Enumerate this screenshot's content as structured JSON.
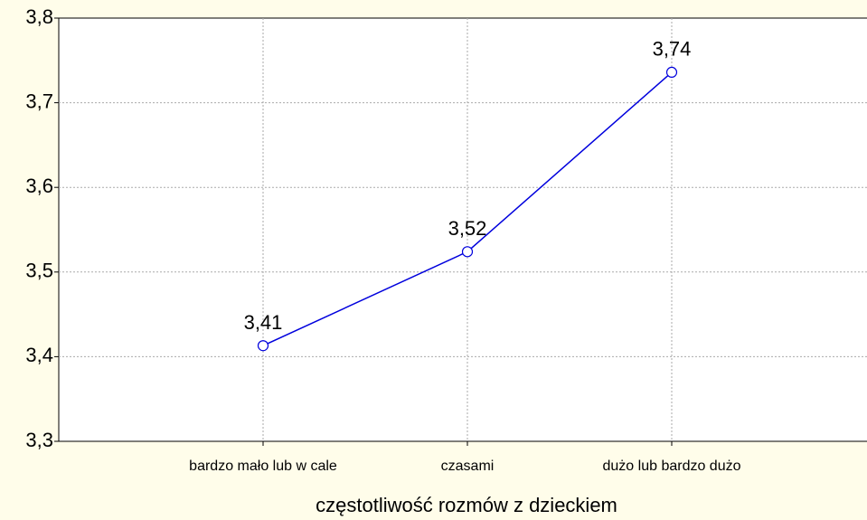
{
  "chart_data": {
    "type": "line",
    "x_label": "częstotliwość rozmów z dzieckiem",
    "categories": [
      "bardzo mało lub w cale",
      "czasami",
      "dużo lub bardzo dużo"
    ],
    "series": [
      {
        "name": "",
        "color": "#0000dd",
        "values": [
          3.413,
          3.524,
          3.736
        ],
        "value_labels": [
          "3,41",
          "3,52",
          "3,74"
        ]
      }
    ],
    "ylim": [
      3.3,
      3.8
    ],
    "yticks": [
      {
        "value": 3.3,
        "label": "3,3"
      },
      {
        "value": 3.4,
        "label": "3,4"
      },
      {
        "value": 3.5,
        "label": "3,5"
      },
      {
        "value": 3.6,
        "label": "3,6"
      },
      {
        "value": 3.7,
        "label": "3,7"
      },
      {
        "value": 3.8,
        "label": "3,8"
      }
    ],
    "grid": true
  }
}
